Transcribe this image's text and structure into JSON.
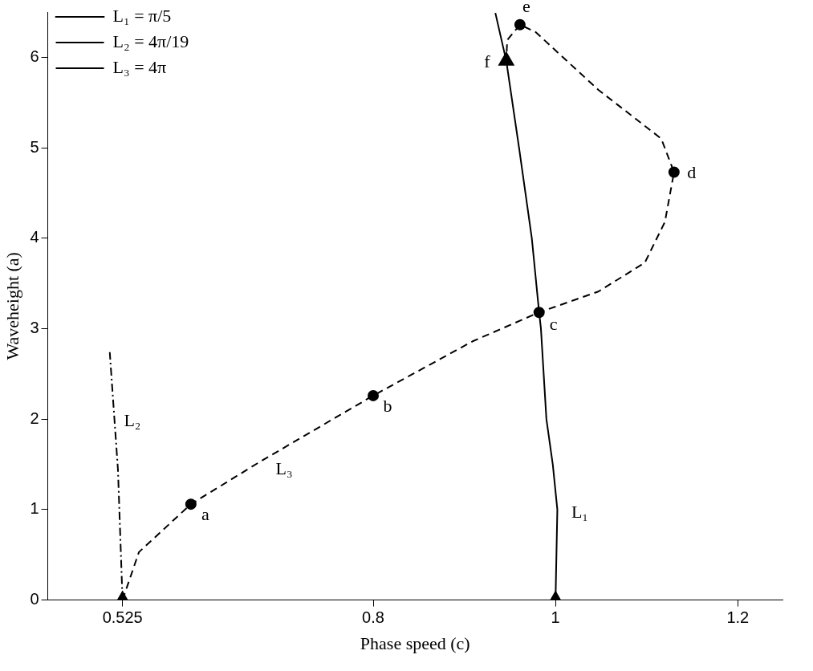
{
  "chart_data": {
    "type": "line",
    "xlabel": "Phase speed (c)",
    "ylabel": "Waveheight (a)",
    "xlim": [
      0.443,
      1.249
    ],
    "ylim": [
      0,
      6.5
    ],
    "xticks": [
      0.525,
      0.8,
      1,
      1.2
    ],
    "yticks": [
      0,
      1,
      2,
      3,
      4,
      5,
      6
    ],
    "grid": false,
    "legend": "top left",
    "series": [
      {
        "name": "L₁ = π/5",
        "color": "#000000",
        "line_style": "solid",
        "marker": "none",
        "x": [
          1.0,
          1.002,
          0.997,
          0.99,
          0.984,
          0.982,
          0.974,
          0.96,
          0.946,
          0.934
        ],
        "values": [
          0,
          1,
          1.5,
          2,
          3,
          3.18,
          4,
          5,
          5.96,
          6.49
        ]
      },
      {
        "name": "L₂ = 4π/19",
        "color": "#000000",
        "line_style": "dashdot",
        "marker": "none",
        "x": [
          0.525,
          0.52,
          0.511
        ],
        "values": [
          0,
          1.44,
          2.74
        ]
      },
      {
        "name": "L₃ = 4π",
        "color": "#000000",
        "line_style": "dashed",
        "marker": "none",
        "x": [
          0.525,
          0.543,
          0.6,
          0.676,
          0.8,
          0.909,
          0.982,
          1.047,
          1.098,
          1.12,
          1.13,
          1.116,
          1.047,
          0.978,
          0.961,
          0.947,
          0.946
        ],
        "values": [
          0,
          0.53,
          1.06,
          1.53,
          2.26,
          2.86,
          3.18,
          3.41,
          3.73,
          4.18,
          4.73,
          5.1,
          5.64,
          6.28,
          6.36,
          6.19,
          5.96
        ]
      },
      {
        "type": "scatter",
        "color": "#000000",
        "marker": "circle",
        "x": [
          0.6,
          0.8,
          0.982,
          1.13,
          0.961
        ],
        "values": [
          1.06,
          2.26,
          3.18,
          4.73,
          6.36
        ]
      },
      {
        "type": "scatter",
        "color": "#000000",
        "marker": "triangle",
        "x": [
          0.525,
          1.0,
          0.946
        ],
        "values": [
          0,
          0,
          5.96
        ]
      }
    ],
    "annotations": [
      {
        "text": "a",
        "x": 0.6,
        "y": 1.06
      },
      {
        "text": "b",
        "x": 0.8,
        "y": 2.26
      },
      {
        "text": "c",
        "x": 0.982,
        "y": 3.18
      },
      {
        "text": "d",
        "x": 1.13,
        "y": 4.73
      },
      {
        "text": "e",
        "x": 0.961,
        "y": 6.36
      },
      {
        "text": "f",
        "x": 0.946,
        "y": 5.96
      },
      "L₁",
      "L₂",
      "L₃"
    ]
  }
}
